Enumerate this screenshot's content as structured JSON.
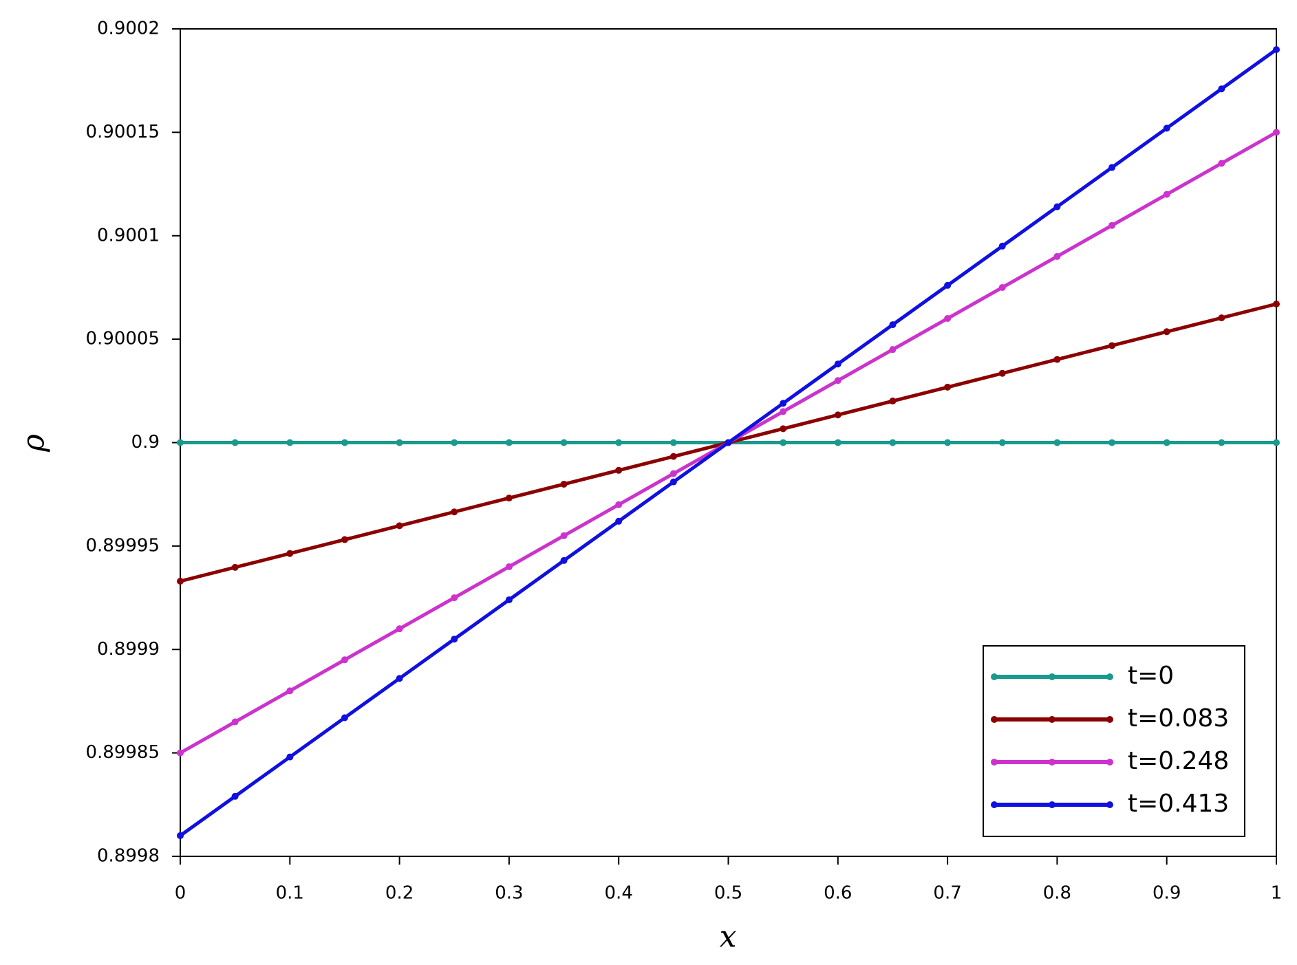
{
  "chart_data": {
    "type": "line",
    "x_label": "x",
    "y_label": "ρ",
    "x": [
      0,
      0.05,
      0.1,
      0.15,
      0.2,
      0.25,
      0.3,
      0.35,
      0.4,
      0.45,
      0.5,
      0.55,
      0.6,
      0.65,
      0.7,
      0.75,
      0.8,
      0.85,
      0.9,
      0.95,
      1
    ],
    "series": [
      {
        "name": "t=0",
        "color": "#1a9a8e",
        "values": [
          0.9,
          0.9,
          0.9,
          0.9,
          0.9,
          0.9,
          0.9,
          0.9,
          0.9,
          0.9,
          0.9,
          0.9,
          0.9,
          0.9,
          0.9,
          0.9,
          0.9,
          0.9,
          0.9,
          0.9,
          0.9
        ]
      },
      {
        "name": "t=0.083",
        "color": "#8b0000",
        "values": [
          0.899933,
          0.8999397,
          0.8999464,
          0.8999531,
          0.8999598,
          0.8999665,
          0.8999732,
          0.8999799,
          0.8999866,
          0.8999933,
          0.9,
          0.9000067,
          0.9000134,
          0.9000201,
          0.9000268,
          0.9000335,
          0.9000402,
          0.9000469,
          0.9000536,
          0.9000603,
          0.900067
        ]
      },
      {
        "name": "t=0.248",
        "color": "#cc33cc",
        "values": [
          0.89985,
          0.899865,
          0.89988,
          0.899895,
          0.89991,
          0.899925,
          0.89994,
          0.899955,
          0.89997,
          0.899985,
          0.9,
          0.900015,
          0.90003,
          0.900045,
          0.90006,
          0.900075,
          0.90009,
          0.900105,
          0.90012,
          0.900135,
          0.90015
        ]
      },
      {
        "name": "t=0.413",
        "color": "#1010e0",
        "values": [
          0.89981,
          0.899829,
          0.899848,
          0.899867,
          0.899886,
          0.899905,
          0.899924,
          0.899943,
          0.899962,
          0.899981,
          0.9,
          0.900019,
          0.900038,
          0.900057,
          0.900076,
          0.900095,
          0.900114,
          0.900133,
          0.900152,
          0.900171,
          0.90019
        ]
      }
    ],
    "xlim": [
      0,
      1
    ],
    "xticks": [
      0,
      0.1,
      0.2,
      0.3,
      0.4,
      0.5,
      0.6,
      0.7,
      0.8,
      0.9,
      1
    ],
    "ylim": [
      0.8998,
      0.9002
    ],
    "yticks": [
      0.8998,
      0.89985,
      0.8999,
      0.89995,
      0.9,
      0.90005,
      0.9001,
      0.90015,
      0.9002
    ],
    "legend": "lower right"
  }
}
